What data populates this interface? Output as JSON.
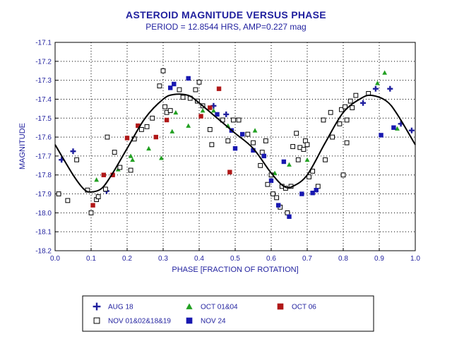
{
  "chart_data": {
    "type": "scatter",
    "title": "ASTEROID MAGNITUDE VERSUS PHASE",
    "subtitle": "PERIOD = 12.8544 HRS, AMP=0.227 mag",
    "xlabel": "PHASE [FRACTION OF ROTATION]",
    "ylabel": "MAGNITUDE",
    "xlim": [
      0.0,
      1.0
    ],
    "ylim": [
      -17.1,
      -18.2
    ],
    "y_inverted": true,
    "grid": true,
    "legend_position": "bottom",
    "x_ticks": [
      "0.0",
      "0.1",
      "0.2",
      "0.3",
      "0.4",
      "0.5",
      "0.6",
      "0.7",
      "0.8",
      "0.9",
      "1.0"
    ],
    "y_ticks": [
      "-17.1",
      "-17.2",
      "-17.3",
      "-17.4",
      "-17.5",
      "-17.6",
      "-17.7",
      "-17.8",
      "-17.9",
      "-18.0",
      "-18.1",
      "-18.2"
    ],
    "colors": {
      "text": "#1f1f9e",
      "curve": "#000000",
      "aug18": "#1f1f9e",
      "oct0104": "#22a022",
      "oct06": "#b01818",
      "nov011819": "#000000",
      "nov24": "#1818b0"
    },
    "series": [
      {
        "name": "AUG 18",
        "marker": "plus",
        "points": [
          [
            0.018,
            -17.72
          ],
          [
            0.05,
            -17.675
          ],
          [
            0.143,
            -17.885
          ],
          [
            0.44,
            -17.435
          ],
          [
            0.475,
            -17.48
          ],
          [
            0.855,
            -17.42
          ],
          [
            0.89,
            -17.345
          ],
          [
            0.93,
            -17.345
          ],
          [
            0.96,
            -17.53
          ],
          [
            0.99,
            -17.565
          ]
        ]
      },
      {
        "name": "OCT 01&04",
        "marker": "triangle",
        "points": [
          [
            0.115,
            -17.825
          ],
          [
            0.175,
            -17.77
          ],
          [
            0.21,
            -17.7
          ],
          [
            0.215,
            -17.72
          ],
          [
            0.26,
            -17.66
          ],
          [
            0.295,
            -17.71
          ],
          [
            0.325,
            -17.57
          ],
          [
            0.335,
            -17.47
          ],
          [
            0.37,
            -17.54
          ],
          [
            0.41,
            -17.46
          ],
          [
            0.44,
            -17.46
          ],
          [
            0.48,
            -17.54
          ],
          [
            0.555,
            -17.565
          ],
          [
            0.61,
            -17.79
          ],
          [
            0.65,
            -17.745
          ],
          [
            0.7,
            -17.72
          ],
          [
            0.895,
            -17.315
          ],
          [
            0.915,
            -17.26
          ],
          [
            0.95,
            -17.555
          ]
        ]
      },
      {
        "name": "OCT 06",
        "marker": "square",
        "points": [
          [
            0.105,
            -17.96
          ],
          [
            0.135,
            -17.8
          ],
          [
            0.16,
            -17.8
          ],
          [
            0.2,
            -17.605
          ],
          [
            0.23,
            -17.54
          ],
          [
            0.28,
            -17.6
          ],
          [
            0.31,
            -17.51
          ],
          [
            0.405,
            -17.49
          ],
          [
            0.43,
            -17.445
          ],
          [
            0.455,
            -17.345
          ],
          [
            0.485,
            -17.785
          ]
        ]
      },
      {
        "name": "NOV 01&02&18&19",
        "marker": "open-square",
        "points": [
          [
            0.01,
            -17.9
          ],
          [
            0.035,
            -17.935
          ],
          [
            0.06,
            -17.72
          ],
          [
            0.09,
            -17.88
          ],
          [
            0.1,
            -18.0
          ],
          [
            0.115,
            -17.93
          ],
          [
            0.12,
            -17.915
          ],
          [
            0.14,
            -17.875
          ],
          [
            0.145,
            -17.6
          ],
          [
            0.165,
            -17.68
          ],
          [
            0.18,
            -17.76
          ],
          [
            0.21,
            -17.775
          ],
          [
            0.22,
            -17.61
          ],
          [
            0.24,
            -17.56
          ],
          [
            0.255,
            -17.545
          ],
          [
            0.27,
            -17.5
          ],
          [
            0.29,
            -17.33
          ],
          [
            0.3,
            -17.25
          ],
          [
            0.305,
            -17.44
          ],
          [
            0.31,
            -17.47
          ],
          [
            0.32,
            -17.46
          ],
          [
            0.345,
            -17.35
          ],
          [
            0.355,
            -17.39
          ],
          [
            0.375,
            -17.395
          ],
          [
            0.39,
            -17.35
          ],
          [
            0.395,
            -17.41
          ],
          [
            0.4,
            -17.31
          ],
          [
            0.41,
            -17.435
          ],
          [
            0.43,
            -17.56
          ],
          [
            0.435,
            -17.64
          ],
          [
            0.465,
            -17.51
          ],
          [
            0.48,
            -17.62
          ],
          [
            0.495,
            -17.51
          ],
          [
            0.51,
            -17.51
          ],
          [
            0.535,
            -17.585
          ],
          [
            0.55,
            -17.63
          ],
          [
            0.57,
            -17.75
          ],
          [
            0.575,
            -17.68
          ],
          [
            0.585,
            -17.62
          ],
          [
            0.59,
            -17.85
          ],
          [
            0.6,
            -17.8
          ],
          [
            0.605,
            -17.9
          ],
          [
            0.615,
            -17.92
          ],
          [
            0.625,
            -17.97
          ],
          [
            0.63,
            -17.86
          ],
          [
            0.64,
            -17.87
          ],
          [
            0.645,
            -18.0
          ],
          [
            0.655,
            -17.86
          ],
          [
            0.66,
            -17.65
          ],
          [
            0.67,
            -17.58
          ],
          [
            0.675,
            -17.72
          ],
          [
            0.68,
            -17.655
          ],
          [
            0.69,
            -17.665
          ],
          [
            0.695,
            -17.62
          ],
          [
            0.7,
            -17.64
          ],
          [
            0.705,
            -17.81
          ],
          [
            0.715,
            -17.78
          ],
          [
            0.73,
            -17.86
          ],
          [
            0.745,
            -17.51
          ],
          [
            0.75,
            -17.72
          ],
          [
            0.765,
            -17.47
          ],
          [
            0.77,
            -17.6
          ],
          [
            0.79,
            -17.53
          ],
          [
            0.795,
            -17.455
          ],
          [
            0.8,
            -17.8
          ],
          [
            0.805,
            -17.44
          ],
          [
            0.81,
            -17.63
          ],
          [
            0.81,
            -17.51
          ],
          [
            0.82,
            -17.41
          ],
          [
            0.825,
            -17.445
          ],
          [
            0.835,
            -17.38
          ],
          [
            0.87,
            -17.37
          ]
        ]
      },
      {
        "name": "NOV 24",
        "marker": "square",
        "points": [
          [
            0.32,
            -17.34
          ],
          [
            0.33,
            -17.32
          ],
          [
            0.37,
            -17.29
          ],
          [
            0.45,
            -17.48
          ],
          [
            0.49,
            -17.565
          ],
          [
            0.5,
            -17.66
          ],
          [
            0.52,
            -17.585
          ],
          [
            0.55,
            -17.67
          ],
          [
            0.58,
            -17.7
          ],
          [
            0.6,
            -17.83
          ],
          [
            0.62,
            -17.96
          ],
          [
            0.635,
            -17.73
          ],
          [
            0.65,
            -18.02
          ],
          [
            0.685,
            -17.9
          ],
          [
            0.715,
            -17.895
          ],
          [
            0.725,
            -17.88
          ],
          [
            0.905,
            -17.59
          ],
          [
            0.94,
            -17.55
          ]
        ]
      }
    ],
    "fit_curve": {
      "name": "fit",
      "points": [
        [
          0.0,
          -17.64
        ],
        [
          0.05,
          -17.8
        ],
        [
          0.08,
          -17.875
        ],
        [
          0.1,
          -17.89
        ],
        [
          0.13,
          -17.87
        ],
        [
          0.16,
          -17.79
        ],
        [
          0.2,
          -17.66
        ],
        [
          0.25,
          -17.5
        ],
        [
          0.3,
          -17.4
        ],
        [
          0.33,
          -17.375
        ],
        [
          0.37,
          -17.38
        ],
        [
          0.4,
          -17.42
        ],
        [
          0.45,
          -17.5
        ],
        [
          0.5,
          -17.58
        ],
        [
          0.55,
          -17.66
        ],
        [
          0.6,
          -17.79
        ],
        [
          0.635,
          -17.86
        ],
        [
          0.66,
          -17.86
        ],
        [
          0.7,
          -17.8
        ],
        [
          0.75,
          -17.63
        ],
        [
          0.8,
          -17.47
        ],
        [
          0.85,
          -17.395
        ],
        [
          0.88,
          -17.38
        ],
        [
          0.92,
          -17.41
        ],
        [
          0.95,
          -17.48
        ],
        [
          1.0,
          -17.64
        ]
      ]
    }
  }
}
